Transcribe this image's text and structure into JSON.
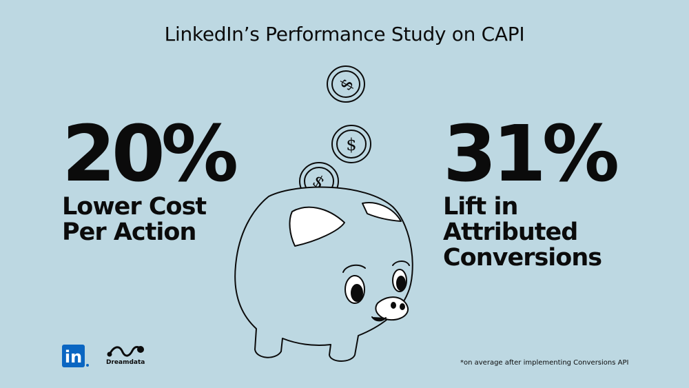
{
  "title": "LinkedIn’s Performance Study on CAPI",
  "stats": [
    {
      "value": "20%",
      "line1": "Lower Cost",
      "line2": "Per Action"
    },
    {
      "value": "31%",
      "line1": "Lift in",
      "line2": "Attributed",
      "line3": "Conversions"
    }
  ],
  "logos": {
    "linkedin": "in",
    "dreamdata": "Dreamdata"
  },
  "footnote": "*on average after implementing Conversions API",
  "icons": [
    "dollar-coin-icon",
    "piggy-bank-illustration",
    "linkedin-logo-icon",
    "dreamdata-logo-icon"
  ],
  "colors": {
    "background": "#bdd8e2",
    "text": "#0b0b0b",
    "linkedin": "#0a66c2"
  }
}
